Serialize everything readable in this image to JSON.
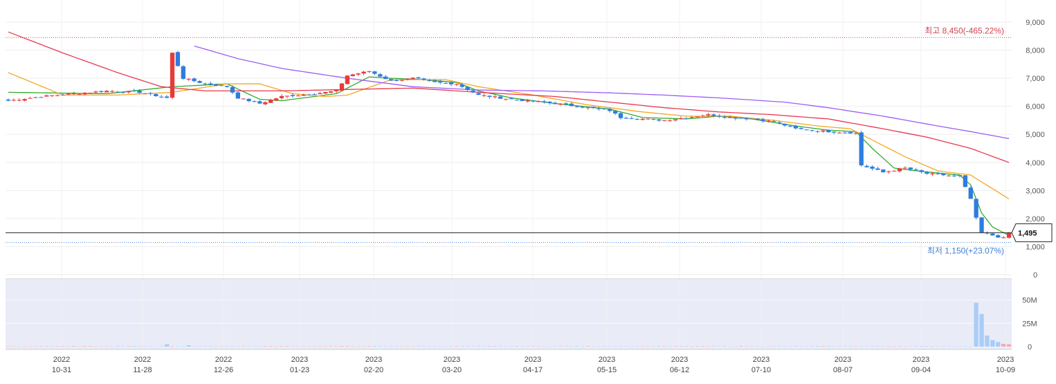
{
  "chart_data": {
    "type": "candlestick",
    "title": "",
    "price_axis": {
      "ylim": [
        0,
        9000
      ],
      "ticks": [
        {
          "value": 0,
          "label": "0"
        },
        {
          "value": 1000,
          "label": "1,000"
        },
        {
          "value": 2000,
          "label": "2,000"
        },
        {
          "value": 3000,
          "label": "3,000"
        },
        {
          "value": 4000,
          "label": "4,000"
        },
        {
          "value": 5000,
          "label": "5,000"
        },
        {
          "value": 6000,
          "label": "6,000"
        },
        {
          "value": 7000,
          "label": "7,000"
        },
        {
          "value": 8000,
          "label": "8,000"
        },
        {
          "value": 9000,
          "label": "9,000"
        }
      ]
    },
    "volume_axis": {
      "ylim": [
        0,
        60
      ],
      "unit": "M",
      "ticks": [
        {
          "value": 0,
          "label": "0"
        },
        {
          "value": 25,
          "label": "25M"
        },
        {
          "value": 50,
          "label": "50M"
        }
      ]
    },
    "date_ticks": [
      {
        "year": "2022",
        "date": "10-31"
      },
      {
        "year": "2022",
        "date": "11-28"
      },
      {
        "year": "2022",
        "date": "12-26"
      },
      {
        "year": "2023",
        "date": "01-23"
      },
      {
        "year": "2023",
        "date": "02-20"
      },
      {
        "year": "2023",
        "date": "03-20"
      },
      {
        "year": "2023",
        "date": "04-17"
      },
      {
        "year": "2023",
        "date": "05-15"
      },
      {
        "year": "2023",
        "date": "06-12"
      },
      {
        "year": "2023",
        "date": "07-10"
      },
      {
        "year": "2023",
        "date": "08-07"
      },
      {
        "year": "2023",
        "date": "09-04"
      },
      {
        "year": "2023",
        "date": "10-09"
      }
    ],
    "annotations": {
      "high": {
        "label": "최고 8,450(-465.22%)",
        "value": 8450
      },
      "low": {
        "label": "최저 1,150(+23.07%)",
        "value": 1150
      },
      "current": {
        "label": "1,495",
        "value": 1495
      }
    },
    "price_anchors": [
      [
        0,
        6200
      ],
      [
        6,
        6350
      ],
      [
        12,
        6450
      ],
      [
        18,
        6550
      ],
      [
        24,
        6500
      ],
      [
        29,
        6300
      ],
      [
        30,
        7900
      ],
      [
        32,
        7000
      ],
      [
        36,
        6800
      ],
      [
        40,
        6700
      ],
      [
        42,
        6300
      ],
      [
        46,
        6100
      ],
      [
        50,
        6350
      ],
      [
        56,
        6450
      ],
      [
        60,
        6550
      ],
      [
        62,
        7100
      ],
      [
        66,
        7250
      ],
      [
        70,
        6900
      ],
      [
        74,
        7000
      ],
      [
        78,
        6850
      ],
      [
        82,
        6800
      ],
      [
        86,
        6400
      ],
      [
        92,
        6250
      ],
      [
        100,
        6100
      ],
      [
        106,
        5950
      ],
      [
        110,
        5850
      ],
      [
        112,
        5600
      ],
      [
        116,
        5550
      ],
      [
        120,
        5500
      ],
      [
        124,
        5600
      ],
      [
        128,
        5700
      ],
      [
        132,
        5600
      ],
      [
        136,
        5550
      ],
      [
        140,
        5450
      ],
      [
        144,
        5200
      ],
      [
        150,
        5100
      ],
      [
        155,
        5050
      ],
      [
        156,
        3900
      ],
      [
        160,
        3650
      ],
      [
        164,
        3800
      ],
      [
        168,
        3600
      ],
      [
        174,
        3500
      ],
      [
        176,
        2700
      ],
      [
        177,
        2000
      ],
      [
        178,
        1500
      ],
      [
        180,
        1400
      ],
      [
        182,
        1300
      ],
      [
        183,
        1495
      ]
    ],
    "moving_averages": [
      {
        "color": "#2eaa2e",
        "points": [
          [
            0,
            6500
          ],
          [
            18,
            6450
          ],
          [
            30,
            6700
          ],
          [
            40,
            6800
          ],
          [
            46,
            6250
          ],
          [
            50,
            6200
          ],
          [
            56,
            6350
          ],
          [
            60,
            6450
          ],
          [
            62,
            6650
          ],
          [
            66,
            7050
          ],
          [
            70,
            7000
          ],
          [
            76,
            6950
          ],
          [
            82,
            6850
          ],
          [
            86,
            6550
          ],
          [
            92,
            6300
          ],
          [
            100,
            6100
          ],
          [
            110,
            5900
          ],
          [
            116,
            5600
          ],
          [
            124,
            5550
          ],
          [
            130,
            5650
          ],
          [
            136,
            5550
          ],
          [
            144,
            5300
          ],
          [
            150,
            5150
          ],
          [
            155,
            5100
          ],
          [
            158,
            4500
          ],
          [
            162,
            3800
          ],
          [
            166,
            3700
          ],
          [
            174,
            3550
          ],
          [
            176,
            3200
          ],
          [
            178,
            2200
          ],
          [
            180,
            1700
          ],
          [
            183,
            1400
          ]
        ]
      },
      {
        "color": "#f5a623",
        "points": [
          [
            0,
            7200
          ],
          [
            10,
            6400
          ],
          [
            20,
            6400
          ],
          [
            30,
            6500
          ],
          [
            40,
            6800
          ],
          [
            46,
            6800
          ],
          [
            52,
            6450
          ],
          [
            58,
            6350
          ],
          [
            62,
            6400
          ],
          [
            70,
            6950
          ],
          [
            80,
            6950
          ],
          [
            86,
            6700
          ],
          [
            96,
            6400
          ],
          [
            106,
            6050
          ],
          [
            116,
            5800
          ],
          [
            124,
            5650
          ],
          [
            132,
            5650
          ],
          [
            140,
            5500
          ],
          [
            148,
            5300
          ],
          [
            154,
            5200
          ],
          [
            158,
            4800
          ],
          [
            164,
            4200
          ],
          [
            170,
            3700
          ],
          [
            176,
            3550
          ],
          [
            183,
            2700
          ]
        ]
      },
      {
        "color": "#e8384f",
        "points": [
          [
            0,
            8650
          ],
          [
            10,
            7900
          ],
          [
            20,
            7200
          ],
          [
            28,
            6700
          ],
          [
            36,
            6550
          ],
          [
            50,
            6550
          ],
          [
            62,
            6600
          ],
          [
            74,
            6650
          ],
          [
            86,
            6500
          ],
          [
            100,
            6350
          ],
          [
            110,
            6150
          ],
          [
            120,
            5950
          ],
          [
            130,
            5800
          ],
          [
            140,
            5700
          ],
          [
            150,
            5550
          ],
          [
            160,
            5200
          ],
          [
            168,
            4900
          ],
          [
            176,
            4500
          ],
          [
            183,
            4000
          ]
        ]
      },
      {
        "color": "#9c5cf5",
        "points": [
          [
            34,
            8150
          ],
          [
            42,
            7700
          ],
          [
            50,
            7350
          ],
          [
            62,
            7000
          ],
          [
            74,
            6700
          ],
          [
            86,
            6580
          ],
          [
            98,
            6550
          ],
          [
            110,
            6480
          ],
          [
            120,
            6400
          ],
          [
            130,
            6300
          ],
          [
            142,
            6150
          ],
          [
            150,
            5950
          ],
          [
            160,
            5650
          ],
          [
            170,
            5300
          ],
          [
            176,
            5100
          ],
          [
            183,
            4850
          ]
        ]
      }
    ],
    "volume_spikes": [
      [
        29,
        2.5
      ],
      [
        33,
        1.5
      ],
      [
        177,
        47
      ],
      [
        178,
        35
      ],
      [
        179,
        12
      ],
      [
        180,
        7
      ],
      [
        181,
        5
      ],
      [
        182,
        3
      ],
      [
        183,
        2.5
      ]
    ]
  }
}
